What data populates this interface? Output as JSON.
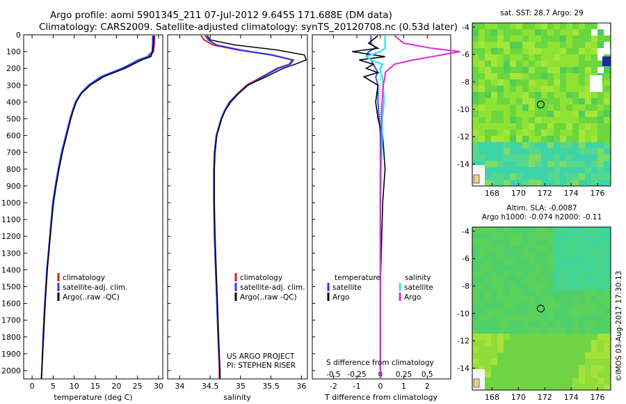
{
  "header": {
    "line1": "Argo profile: aoml 5901345_211 07-Jul-2012 9.645S 171.688E (DM data)",
    "line2": "Climatology: CARS2009. Satellite-adjusted climatology: synTS_20120708.nc (0.53d later)"
  },
  "colors": {
    "climatology": "#e41a1c",
    "satellite": "#1f3fff",
    "argo": "#000000",
    "cyan": "#33e5f0",
    "magenta": "#e02bd6"
  },
  "chart_data": [
    {
      "type": "line",
      "name": "temperature",
      "xlabel": "temperature (deg C)",
      "ylabel": "",
      "xlim": [
        -2,
        31
      ],
      "ylim": [
        2050,
        0
      ],
      "xticks": [
        "0",
        "5",
        "10",
        "15",
        "20",
        "25",
        "30"
      ],
      "xtick_values": [
        0,
        5,
        10,
        15,
        20,
        25,
        30
      ],
      "yticks": [
        "0",
        "100",
        "200",
        "300",
        "400",
        "500",
        "600",
        "700",
        "800",
        "900",
        "1000",
        "1100",
        "1200",
        "1300",
        "1400",
        "1500",
        "1600",
        "1700",
        "1800",
        "1900",
        "2000"
      ],
      "ytick_values": [
        0,
        100,
        200,
        300,
        400,
        500,
        600,
        700,
        800,
        900,
        1000,
        1100,
        1200,
        1300,
        1400,
        1500,
        1600,
        1700,
        1800,
        1900,
        2000
      ],
      "legend": [
        "climatology",
        "satellite-adj. clim.",
        "Argo(..raw -QC)"
      ],
      "depth": [
        5,
        50,
        100,
        130,
        150,
        175,
        200,
        225,
        250,
        300,
        350,
        400,
        450,
        500,
        600,
        700,
        800,
        900,
        1000,
        1200,
        1400,
        1600,
        1800,
        2000,
        2050
      ],
      "series": [
        {
          "name": "climatology",
          "values": [
            29.0,
            29.0,
            28.8,
            27.8,
            25.5,
            23.5,
            21.5,
            19.0,
            16.5,
            13.5,
            11.6,
            10.4,
            9.7,
            9.1,
            8.1,
            7.1,
            6.3,
            5.6,
            5.0,
            4.3,
            3.6,
            3.1,
            2.7,
            2.3,
            2.2
          ]
        },
        {
          "name": "satellite-adj. clim.",
          "values": [
            28.6,
            28.6,
            28.5,
            27.4,
            25.2,
            23.3,
            21.3,
            18.8,
            16.3,
            13.4,
            11.5,
            10.3,
            9.6,
            9.0,
            8.0,
            7.0,
            6.2,
            5.5,
            4.9,
            4.2,
            3.5,
            3.0,
            2.6,
            2.3,
            2.2
          ]
        },
        {
          "name": "Argo(..raw -QC)",
          "values": [
            28.9,
            28.8,
            28.6,
            28.2,
            26.0,
            24.0,
            22.0,
            19.5,
            17.0,
            13.8,
            11.7,
            10.5,
            9.8,
            9.2,
            8.2,
            7.2,
            6.4,
            5.7,
            5.1,
            4.3,
            3.6,
            3.1,
            2.7,
            2.3,
            2.2
          ]
        }
      ]
    },
    {
      "type": "line",
      "name": "salinity",
      "xlabel": "salinity",
      "xlim": [
        33.8,
        36.1
      ],
      "ylim": [
        2050,
        0
      ],
      "xticks": [
        "34",
        "34.5",
        "35",
        "35.5",
        "36"
      ],
      "xtick_values": [
        34,
        34.5,
        35,
        35.5,
        36
      ],
      "legend": [
        "climatology",
        "satellite-adj. clim.",
        "Argo(..raw -QC)"
      ],
      "depth": [
        5,
        30,
        60,
        90,
        120,
        150,
        175,
        200,
        250,
        300,
        350,
        400,
        450,
        500,
        600,
        700,
        800,
        1000,
        1200,
        1400,
        1600,
        1800,
        2000,
        2050
      ],
      "series": [
        {
          "name": "climatology",
          "values": [
            34.35,
            34.4,
            34.55,
            34.95,
            35.5,
            35.85,
            35.8,
            35.6,
            35.35,
            35.1,
            34.95,
            34.82,
            34.74,
            34.68,
            34.6,
            34.57,
            34.56,
            34.56,
            34.57,
            34.59,
            34.61,
            34.63,
            34.65,
            34.65
          ]
        },
        {
          "name": "satellite-adj. clim.",
          "values": [
            34.42,
            34.47,
            34.6,
            35.0,
            35.52,
            35.87,
            35.82,
            35.62,
            35.37,
            35.12,
            34.96,
            34.82,
            34.74,
            34.68,
            34.6,
            34.57,
            34.56,
            34.56,
            34.57,
            34.59,
            34.61,
            34.63,
            34.66,
            34.66
          ]
        },
        {
          "name": "Argo(..raw -QC)",
          "values": [
            34.45,
            34.5,
            34.9,
            35.6,
            36.05,
            36.08,
            35.9,
            35.7,
            35.42,
            35.12,
            34.97,
            34.84,
            34.75,
            34.69,
            34.61,
            34.58,
            34.57,
            34.57,
            34.58,
            34.6,
            34.62,
            34.64,
            34.66,
            34.66
          ]
        }
      ],
      "annotations": [
        "US ARGO PROJECT",
        "PI: STEPHEN RISER"
      ]
    },
    {
      "type": "line",
      "name": "differences",
      "xlabel": "T difference from climatology",
      "xlabel_top": "S difference from climatology",
      "xlim": [
        -2.9,
        3.0
      ],
      "ylim": [
        2050,
        0
      ],
      "xticks": [
        "-2",
        "-1",
        "0",
        "1",
        "2"
      ],
      "xtick_values": [
        -2,
        -1,
        0,
        1,
        2
      ],
      "sticks": [
        "-0.5",
        "-0.25",
        "0",
        "0.25",
        "0.5"
      ],
      "stick_values": [
        -0.5,
        -0.25,
        0,
        0.25,
        0.5
      ],
      "legend_title_t": "temperature",
      "legend_title_s": "salinity",
      "legend": [
        "satellite",
        "Argo",
        "satellite",
        "Argo"
      ],
      "depth": [
        5,
        50,
        80,
        100,
        130,
        150,
        175,
        200,
        225,
        250,
        300,
        400,
        500,
        600,
        800,
        1000,
        1500,
        2000,
        2050
      ],
      "series": [
        {
          "name": "T satellite",
          "values": [
            -0.4,
            -0.4,
            -0.2,
            -0.5,
            -0.6,
            -0.4,
            -0.3,
            -0.2,
            -0.1,
            -0.2,
            -0.1,
            -0.1,
            -0.05,
            0,
            0,
            0,
            0,
            0,
            0
          ]
        },
        {
          "name": "T Argo",
          "values": [
            -0.1,
            -0.5,
            -0.1,
            -1.2,
            0.2,
            -0.9,
            -0.3,
            -0.6,
            -0.1,
            -0.7,
            -0.1,
            -0.2,
            -0.1,
            0.1,
            0.2,
            0.1,
            0,
            0,
            0
          ]
        },
        {
          "name": "S satellite",
          "values": [
            0.05,
            0.05,
            0.05,
            0.0,
            -0.15,
            -0.1,
            0.02,
            0.0,
            0.0,
            0.02,
            0.03,
            0.04,
            0.02,
            0.02,
            0.01,
            0.0,
            0.0,
            0.0,
            0.0
          ]
        },
        {
          "name": "S Argo",
          "values": [
            0.15,
            0.25,
            0.55,
            0.85,
            0.55,
            0.35,
            0.15,
            0.1,
            0.05,
            0.05,
            0.03,
            0.02,
            0.01,
            0.01,
            0.0,
            0.0,
            0.0,
            0.0,
            0.0
          ]
        }
      ]
    },
    {
      "type": "heatmap",
      "name": "sst_map",
      "title": "sat. SST: 28.7 Argo: 29",
      "xticks": [
        "168",
        "170",
        "172",
        "174",
        "176"
      ],
      "xtick_values": [
        168,
        170,
        172,
        174,
        176
      ],
      "yticks": [
        "-4",
        "-6",
        "-8",
        "-10",
        "-12",
        "-14"
      ],
      "ytick_values": [
        -4,
        -6,
        -8,
        -10,
        -12,
        -14
      ],
      "xlim": [
        166.5,
        177.0
      ],
      "ylim": [
        -15.6,
        -3.7
      ],
      "marker": [
        171.69,
        -9.65
      ]
    },
    {
      "type": "heatmap",
      "name": "sla_map",
      "title_line1": "Altim. SLA: -0.0087",
      "title_line2": "Argo h1000: -0.074 h2000: -0.11",
      "xticks": [
        "168",
        "170",
        "172",
        "174",
        "176"
      ],
      "xtick_values": [
        168,
        170,
        172,
        174,
        176
      ],
      "yticks": [
        "-4",
        "-6",
        "-8",
        "-10",
        "-12",
        "-14"
      ],
      "ytick_values": [
        -4,
        -6,
        -8,
        -10,
        -12,
        -14
      ],
      "xlim": [
        166.5,
        177.0
      ],
      "ylim": [
        -15.6,
        -3.7
      ],
      "marker": [
        171.69,
        -9.65
      ]
    }
  ],
  "credit": "©IMOS 03-Aug-2017 17:30:13"
}
